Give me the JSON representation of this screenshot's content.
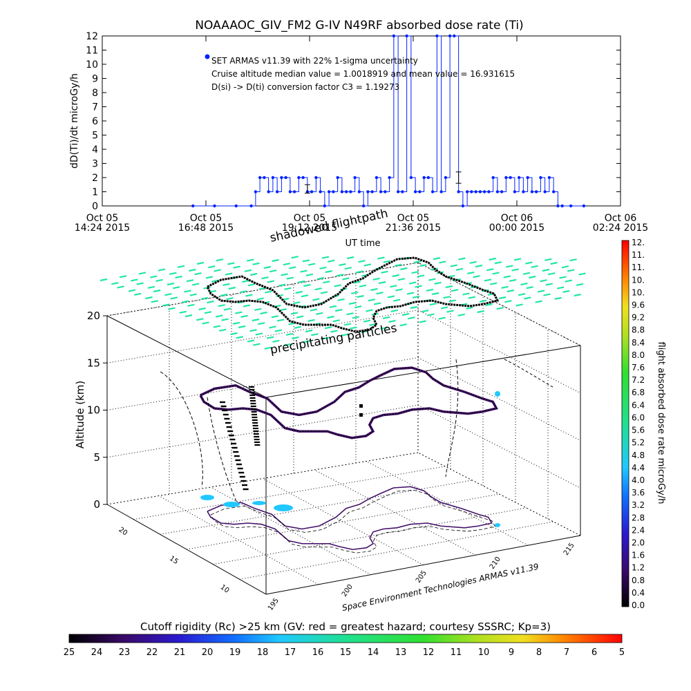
{
  "top_chart": {
    "title": "NOAAAOC_GIV_FM2 G-IV   N49RF  absorbed dose rate (Ti)",
    "ylabel": "dD(Ti)/dt microGy/h",
    "xlabel": "UT time",
    "legend": [
      "SET ARMAS v11.39 with 22% 1-sigma uncertainty",
      "Cruise altitude median value = 1.0018919 and mean value = 16.931615",
      "D(si) -> D(ti) conversion factor C3 = 1.19273"
    ],
    "y_ticks": [
      "0",
      "1",
      "2",
      "3",
      "4",
      "5",
      "6",
      "7",
      "8",
      "9",
      "10",
      "11",
      "12"
    ],
    "x_ticks": [
      {
        "l1": "Oct 05",
        "l2": "14:24 2015"
      },
      {
        "l1": "Oct 05",
        "l2": "16:48 2015"
      },
      {
        "l1": "Oct 05",
        "l2": "19:12 2015"
      },
      {
        "l1": "Oct 05",
        "l2": "21:36 2015"
      },
      {
        "l1": "Oct 06",
        "l2": "00:00 2015"
      },
      {
        "l1": "Oct 06",
        "l2": "02:24 2015"
      }
    ]
  },
  "chart_data": [
    {
      "type": "line",
      "title": "NOAAAOC_GIV_FM2 G-IV   N49RF  absorbed dose rate (Ti)",
      "xlabel": "UT time",
      "ylabel": "dD(Ti)/dt microGy/h",
      "x_unit": "hours since Oct 05 00:00 UT",
      "xlim": [
        14.4,
        26.4
      ],
      "ylim": [
        0,
        12
      ],
      "series": [
        {
          "name": "SET ARMAS v11.39 with 22% 1-sigma uncertainty",
          "color": "#0022ff",
          "x": [
            16.5,
            17.0,
            17.5,
            17.85,
            17.95,
            18.05,
            18.15,
            18.25,
            18.35,
            18.45,
            18.55,
            18.65,
            18.75,
            18.85,
            18.95,
            19.05,
            19.15,
            19.25,
            19.35,
            19.45,
            19.55,
            19.65,
            19.75,
            19.85,
            19.95,
            20.05,
            20.15,
            20.25,
            20.35,
            20.45,
            20.55,
            20.65,
            20.75,
            20.85,
            20.95,
            21.05,
            21.15,
            21.25,
            21.35,
            21.45,
            21.55,
            21.65,
            21.75,
            21.85,
            21.95,
            22.05,
            22.15,
            22.25,
            22.35,
            22.45,
            22.55,
            22.65,
            22.75,
            22.85,
            22.95,
            23.05,
            23.15,
            23.25,
            23.35,
            23.45,
            23.55,
            23.65,
            23.75,
            23.85,
            23.95,
            24.05,
            24.15,
            24.25,
            24.35,
            24.45,
            24.55,
            24.65,
            24.75,
            24.85,
            24.95,
            25.05,
            25.25,
            25.55
          ],
          "y": [
            0,
            0,
            0,
            0,
            1,
            2,
            2,
            1,
            2,
            1,
            2,
            2,
            1,
            1,
            2,
            2,
            1,
            1,
            2,
            1,
            0,
            1,
            1,
            2,
            1,
            1,
            1,
            2,
            1,
            0,
            1,
            1,
            2,
            1,
            1,
            2,
            12,
            1,
            1,
            12,
            2,
            1,
            1,
            2,
            2,
            1,
            12,
            1,
            2,
            12,
            12,
            1,
            0,
            1,
            1,
            1,
            1,
            1,
            1,
            2,
            1,
            1,
            2,
            2,
            1,
            2,
            1,
            2,
            1,
            1,
            2,
            1,
            2,
            1,
            0,
            0,
            0,
            0
          ]
        }
      ],
      "annotations": [
        "SET ARMAS v11.39 with 22% 1-sigma uncertainty",
        "Cruise altitude median value = 1.0018919 and mean value = 16.931615",
        "D(si) -> D(ti) conversion factor C3 = 1.19273"
      ]
    },
    {
      "type": "scatter",
      "title": "",
      "ylabel": "Altitude (km)",
      "zlim": [
        0,
        20
      ],
      "z_ticks": [
        "0",
        "5",
        "10",
        "15",
        "20"
      ],
      "lat_ticks": [
        "10",
        "15",
        "20"
      ],
      "lon_ticks": [
        "195",
        "200",
        "205",
        "210",
        "215"
      ],
      "annotations": [
        "shadowed flightpath",
        "precipitating particles",
        "Space Environment Technologies ARMAS v11.39"
      ]
    }
  ],
  "labels3d": {
    "shadow": "shadowed flightpath",
    "precip": "precipitating particles",
    "credit": "Space Environment Technologies ARMAS v11.39",
    "z_axis_title": "Altitude (km)",
    "z_ticks": [
      "0",
      "5",
      "10",
      "15",
      "20"
    ],
    "lat_ticks": [
      "10",
      "15",
      "20"
    ],
    "lon_ticks": [
      "195",
      "200",
      "205",
      "210",
      "215"
    ]
  },
  "colorbar_right": {
    "title": "flight absorbed dose rate microGy/h",
    "ticks": [
      "0.0",
      "0.4",
      "0.8",
      "1.2",
      "1.6",
      "2.0",
      "2.4",
      "2.8",
      "3.2",
      "3.6",
      "4.0",
      "4.4",
      "4.8",
      "5.2",
      "5.6",
      "6.0",
      "6.4",
      "6.8",
      "7.2",
      "7.6",
      "8.0",
      "8.4",
      "8.8",
      "9.2",
      "9.6",
      "10.",
      "10.",
      "11.",
      "11.",
      "12."
    ]
  },
  "colorbar_bottom": {
    "title": "Cutoff rigidity (Rc) >25 km (GV: red = greatest hazard; courtesy SSSRC; Kp=3)",
    "ticks": [
      "25",
      "24",
      "23",
      "22",
      "21",
      "20",
      "19",
      "18",
      "17",
      "16",
      "15",
      "14",
      "13",
      "12",
      "11",
      "10",
      "9",
      "8",
      "7",
      "6",
      "5"
    ]
  },
  "colors": {
    "series": "#0022ff",
    "cloud": "#20e8a0",
    "track": "#000000",
    "shadow": "#44106a"
  }
}
